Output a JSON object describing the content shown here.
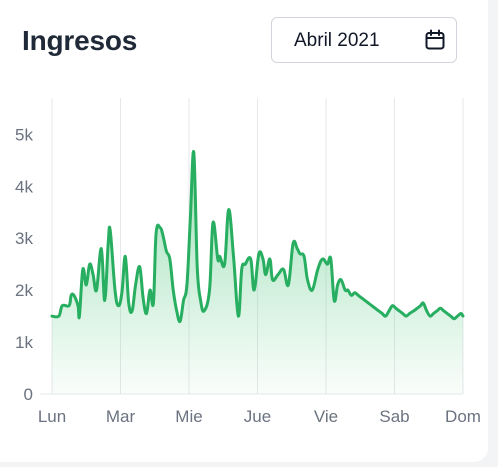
{
  "header": {
    "title": "Ingresos",
    "date_picker": {
      "value": "Abril 2021",
      "icon": "calendar-icon"
    }
  },
  "colors": {
    "line": "#27ae60",
    "fill_top": "#7fd6a0",
    "grid": "#e5e7eb",
    "tick_text": "#6b7280"
  },
  "chart_data": {
    "type": "area",
    "title": "",
    "xlabel": "",
    "ylabel": "",
    "x_ticks": [
      "Lun",
      "Mar",
      "Mie",
      "Jue",
      "Vie",
      "Sab",
      "Dom"
    ],
    "y_ticks": [
      "0",
      "1k",
      "2k",
      "3k",
      "4k",
      "5k"
    ],
    "ylim": [
      0,
      5700
    ],
    "xlim": [
      0,
      6
    ],
    "grid": "vertical",
    "legend": "none",
    "series": [
      {
        "x": [
          0,
          0.1,
          0.15,
          0.25,
          0.28,
          0.32,
          0.38,
          0.4,
          0.45,
          0.5,
          0.55,
          0.6,
          0.65,
          0.72,
          0.77,
          0.82,
          0.85,
          0.92,
          0.97,
          1.02,
          1.07,
          1.12,
          1.17,
          1.22,
          1.28,
          1.33,
          1.38,
          1.43,
          1.48,
          1.52,
          1.58,
          1.62,
          1.67,
          1.72,
          1.77,
          1.82,
          1.87,
          1.92,
          1.97,
          2.02,
          2.07,
          2.12,
          2.17,
          2.22,
          2.3,
          2.35,
          2.42,
          2.45,
          2.52,
          2.58,
          2.65,
          2.72,
          2.77,
          2.82,
          2.9,
          2.95,
          3.02,
          3.08,
          3.12,
          3.18,
          3.22,
          3.3,
          3.38,
          3.45,
          3.52,
          3.58,
          3.62,
          3.68,
          3.73,
          3.8,
          3.88,
          3.95,
          4.02,
          4.07,
          4.12,
          4.17,
          4.22,
          4.28,
          4.32,
          4.37,
          4.42,
          4.47,
          4.52,
          4.57,
          4.62,
          4.67,
          4.72,
          4.77,
          4.82,
          4.87,
          4.92,
          4.97,
          5.02,
          5.07,
          5.12,
          5.17,
          5.22,
          5.28,
          5.33,
          5.38,
          5.42,
          5.47,
          5.52,
          5.57,
          5.62,
          5.67,
          5.72,
          5.77,
          5.82,
          5.87,
          5.92,
          5.97,
          6.0
        ],
        "y": [
          1500,
          1500,
          1700,
          1700,
          1900,
          1900,
          1700,
          1500,
          2400,
          2100,
          2500,
          2300,
          2000,
          2800,
          1800,
          2900,
          3150,
          2000,
          1700,
          1950,
          2650,
          1750,
          1600,
          2100,
          2450,
          1850,
          1550,
          2000,
          1750,
          3100,
          3200,
          3050,
          2750,
          2600,
          2000,
          1600,
          1400,
          1800,
          2100,
          3400,
          4650,
          2450,
          1800,
          1600,
          2000,
          3300,
          2600,
          2650,
          2500,
          3550,
          2650,
          1500,
          2400,
          2500,
          2600,
          2000,
          2700,
          2600,
          2300,
          2600,
          2200,
          2300,
          2400,
          2100,
          2900,
          2800,
          2700,
          2650,
          2200,
          2000,
          2400,
          2600,
          2500,
          2600,
          1800,
          2100,
          2200,
          2000,
          2000,
          1900,
          1950,
          1900,
          1850,
          1800,
          1750,
          1700,
          1650,
          1600,
          1550,
          1500,
          1600,
          1700,
          1650,
          1600,
          1550,
          1500,
          1550,
          1600,
          1650,
          1700,
          1750,
          1600,
          1500,
          1550,
          1600,
          1650,
          1600,
          1550,
          1500,
          1450,
          1500,
          1550,
          1500
        ]
      }
    ]
  }
}
